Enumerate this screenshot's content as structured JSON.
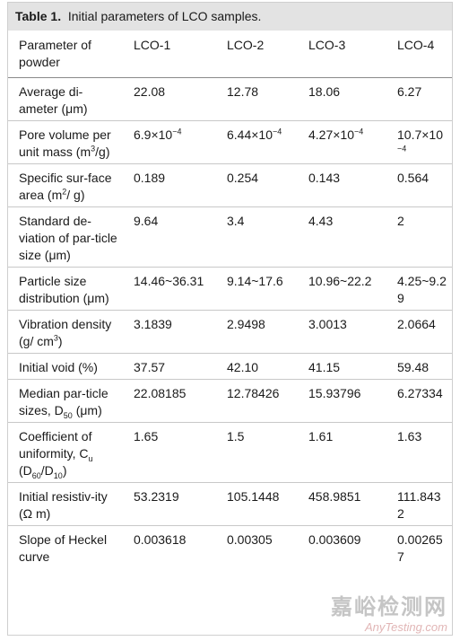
{
  "caption": {
    "label": "Table 1.",
    "text": "Initial parameters of LCO samples."
  },
  "table": {
    "header": [
      "Parameter of powder",
      "LCO-1",
      "LCO-2",
      "LCO-3",
      "LCO-4"
    ],
    "rows": [
      [
        "Average di-ameter (μm)",
        "22.08",
        "12.78",
        "18.06",
        "6.27"
      ],
      [
        [
          "Pore volume per unit mass (m",
          {
            "sup": "3"
          },
          "/g)"
        ],
        [
          "6.9×10",
          {
            "sup": "−4"
          }
        ],
        [
          "6.44×10",
          {
            "sup": "−4"
          }
        ],
        [
          "4.27×10",
          {
            "sup": "−4"
          }
        ],
        [
          "10.7×10",
          {
            "sup": "−4"
          }
        ]
      ],
      [
        [
          "Specific sur-face area (m",
          {
            "sup": "2"
          },
          "/ g)"
        ],
        "0.189",
        "0.254",
        "0.143",
        "0.564"
      ],
      [
        "Standard de-viation of par-ticle size (μm)",
        "9.64",
        "3.4",
        "4.43",
        "2"
      ],
      [
        "Particle size distribution (μm)",
        "14.46~36.31",
        "9.14~17.6",
        "10.96~22.2",
        "4.25~9.29"
      ],
      [
        [
          "Vibration density (g/ cm",
          {
            "sup": "3"
          },
          ")"
        ],
        "3.1839",
        "2.9498",
        "3.0013",
        "2.0664"
      ],
      [
        "Initial void (%)",
        "37.57",
        "42.10",
        "41.15",
        "59.48"
      ],
      [
        [
          "Median par-ticle sizes, D",
          {
            "sub": "50"
          },
          " (μm)"
        ],
        "22.08185",
        "12.78426",
        "15.93796",
        "6.27334"
      ],
      [
        [
          "Coefficient of uniformity, C",
          {
            "sub": "u"
          },
          " (D",
          {
            "sub": "60"
          },
          "/D",
          {
            "sub": "10"
          },
          ")"
        ],
        "1.65",
        "1.5",
        "1.61",
        "1.63"
      ],
      [
        "Initial resistiv-ity (Ω m)",
        "53.2319",
        "105.1448",
        "458.9851",
        "111.8432"
      ],
      [
        "Slope of Heckel curve",
        "0.003618",
        "0.00305",
        "0.003609",
        "0.002657"
      ]
    ]
  },
  "watermark": {
    "name": "嘉峪检测网",
    "site": "AnyTesting.com"
  }
}
